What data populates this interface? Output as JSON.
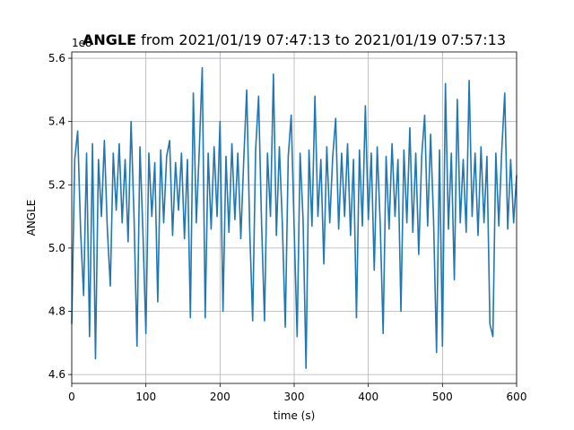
{
  "chart_data": {
    "type": "line",
    "title_bold": "ANGLE",
    "title": "from 2021/01/19 07:47:13 to 2021/01/19 07:57:13",
    "xlabel": "time (s)",
    "ylabel": "ANGLE",
    "offset_label": "1e8",
    "grid": true,
    "xlim": [
      0,
      600
    ],
    "xticks": [
      0,
      100,
      200,
      300,
      400,
      500,
      600
    ],
    "ylim": [
      4.572,
      5.62
    ],
    "yticks": [
      4.6,
      4.8,
      5.0,
      5.2,
      5.4,
      5.6
    ],
    "x": [
      0,
      4,
      8,
      12,
      16,
      20,
      24,
      28,
      32,
      36,
      40,
      44,
      48,
      52,
      56,
      60,
      64,
      68,
      72,
      76,
      80,
      84,
      88,
      92,
      96,
      100,
      104,
      108,
      112,
      116,
      120,
      124,
      128,
      132,
      136,
      140,
      144,
      148,
      152,
      156,
      160,
      164,
      168,
      172,
      176,
      180,
      184,
      188,
      192,
      196,
      200,
      204,
      208,
      212,
      216,
      220,
      224,
      228,
      232,
      236,
      240,
      244,
      248,
      252,
      256,
      260,
      264,
      268,
      272,
      276,
      280,
      284,
      288,
      292,
      296,
      300,
      304,
      308,
      312,
      316,
      320,
      324,
      328,
      332,
      336,
      340,
      344,
      348,
      352,
      356,
      360,
      364,
      368,
      372,
      376,
      380,
      384,
      388,
      392,
      396,
      400,
      404,
      408,
      412,
      416,
      420,
      424,
      428,
      432,
      436,
      440,
      444,
      448,
      452,
      456,
      460,
      464,
      468,
      472,
      476,
      480,
      484,
      488,
      492,
      496,
      500,
      504,
      508,
      512,
      516,
      520,
      524,
      528,
      532,
      536,
      540,
      544,
      548,
      552,
      556,
      560,
      564,
      568,
      572,
      576,
      580,
      584,
      588,
      592,
      596,
      600
    ],
    "series": [
      {
        "color": "#1f77b4",
        "values": [
          4.76,
          5.28,
          5.37,
          5.05,
          4.85,
          5.3,
          4.72,
          5.33,
          4.65,
          5.28,
          5.1,
          5.34,
          5.06,
          4.88,
          5.3,
          5.12,
          5.33,
          5.08,
          5.28,
          5.02,
          5.4,
          5.1,
          4.69,
          5.32,
          5.05,
          4.73,
          5.3,
          5.1,
          5.27,
          4.83,
          5.31,
          5.08,
          5.29,
          5.34,
          5.04,
          5.27,
          5.12,
          5.3,
          5.03,
          5.28,
          4.78,
          5.49,
          5.08,
          5.31,
          5.57,
          4.78,
          5.3,
          5.06,
          5.32,
          5.1,
          5.4,
          4.8,
          5.29,
          5.05,
          5.33,
          5.09,
          5.3,
          5.03,
          5.28,
          5.5,
          5.06,
          4.77,
          5.31,
          5.48,
          5.08,
          4.77,
          5.3,
          5.1,
          5.55,
          5.04,
          5.32,
          5.08,
          4.75,
          5.29,
          5.42,
          5.06,
          4.72,
          5.3,
          5.09,
          4.62,
          5.31,
          5.07,
          5.48,
          5.1,
          5.28,
          4.95,
          5.32,
          5.08,
          5.29,
          5.41,
          5.06,
          5.3,
          5.1,
          5.33,
          5.04,
          5.28,
          4.78,
          5.31,
          5.07,
          5.45,
          5.09,
          5.3,
          4.93,
          5.32,
          5.08,
          4.73,
          5.29,
          5.06,
          5.33,
          5.1,
          5.28,
          4.8,
          5.31,
          5.08,
          5.38,
          5.05,
          5.3,
          4.98,
          5.29,
          5.42,
          5.07,
          5.36,
          5.09,
          4.67,
          5.31,
          4.69,
          5.52,
          5.06,
          5.3,
          4.9,
          5.47,
          5.08,
          5.28,
          5.05,
          5.53,
          5.1,
          5.3,
          5.04,
          5.32,
          5.08,
          5.29,
          4.76,
          4.72,
          5.3,
          5.07,
          5.31,
          5.49,
          5.06,
          5.28,
          5.08,
          5.23
        ]
      }
    ]
  }
}
